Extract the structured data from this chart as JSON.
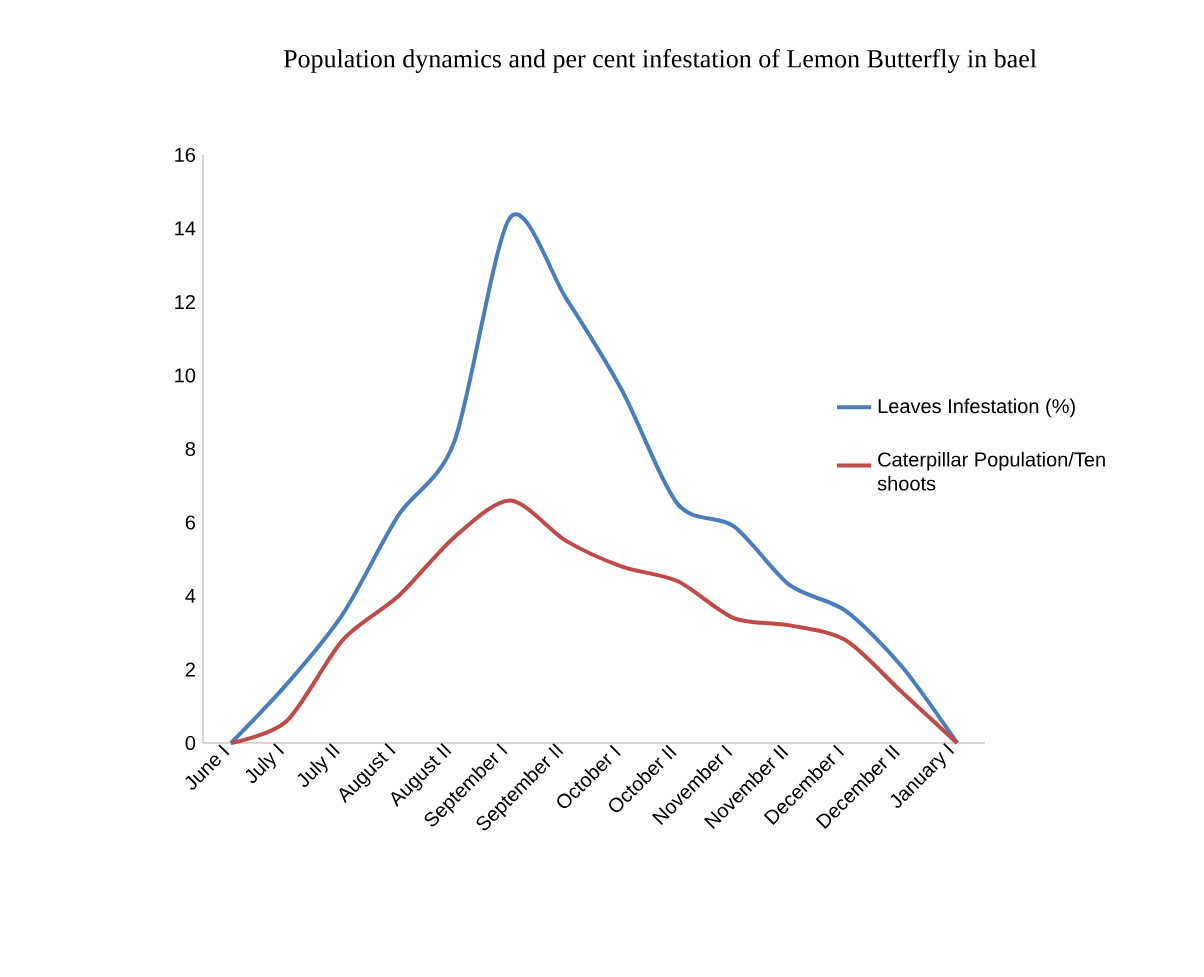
{
  "chart_data": {
    "type": "line",
    "title": "Population dynamics and per cent  infestation of Lemon Butterfly in bael",
    "categories": [
      "June      I",
      "July      I",
      "July      II",
      "August      I",
      "August      II",
      "September      I",
      "September      II",
      "October      I",
      "October      II",
      "November      I",
      "November      II",
      "December      I",
      "December      II",
      "January      I"
    ],
    "series": [
      {
        "name": "Leaves Infestation (%)",
        "color": "#4a7ebb",
        "values": [
          0,
          1.6,
          3.5,
          6.2,
          8.2,
          14.3,
          12.1,
          9.6,
          6.5,
          5.9,
          4.3,
          3.6,
          2.1,
          0
        ]
      },
      {
        "name": "Caterpillar Population/Ten shoots",
        "color": "#be4b48",
        "values": [
          0,
          0.6,
          2.8,
          4.0,
          5.6,
          6.6,
          5.5,
          4.8,
          4.4,
          3.4,
          3.2,
          2.8,
          1.4,
          0
        ]
      }
    ],
    "ylim": [
      0,
      16
    ],
    "yticks": [
      0,
      2,
      4,
      6,
      8,
      10,
      12,
      14,
      16
    ],
    "grid": false,
    "legend": "right",
    "marker": "none",
    "line_style": "solid"
  }
}
